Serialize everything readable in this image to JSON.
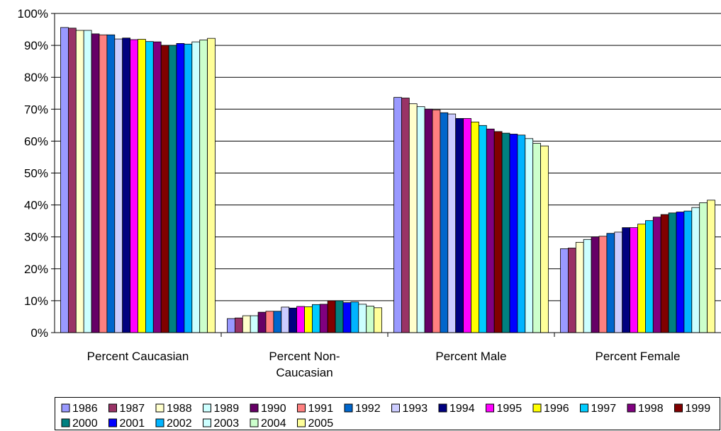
{
  "chart_data": {
    "type": "bar",
    "categories": [
      "Percent Caucasian",
      "Percent Non-Caucasian",
      "Percent Male",
      "Percent Female"
    ],
    "category_lines": [
      [
        "Percent Caucasian"
      ],
      [
        "Percent Non-",
        "Caucasian"
      ],
      [
        "Percent Male"
      ],
      [
        "Percent Female"
      ]
    ],
    "y_ticks": [
      "0%",
      "10%",
      "20%",
      "30%",
      "40%",
      "50%",
      "60%",
      "70%",
      "80%",
      "90%",
      "100%"
    ],
    "ylim": [
      0,
      100
    ],
    "grid": true,
    "legend_position": "bottom",
    "series": [
      {
        "name": "1986",
        "color": "#9999ff",
        "values": [
          95.6,
          4.4,
          73.7,
          26.3
        ]
      },
      {
        "name": "1987",
        "color": "#993366",
        "values": [
          95.4,
          4.6,
          73.5,
          26.5
        ]
      },
      {
        "name": "1988",
        "color": "#ffffcc",
        "values": [
          94.7,
          5.3,
          71.7,
          28.3
        ]
      },
      {
        "name": "1989",
        "color": "#ccffff",
        "values": [
          94.7,
          5.3,
          70.8,
          29.2
        ]
      },
      {
        "name": "1990",
        "color": "#660066",
        "values": [
          93.6,
          6.4,
          70.0,
          30.0
        ]
      },
      {
        "name": "1991",
        "color": "#ff8080",
        "values": [
          93.3,
          6.7,
          69.8,
          30.2
        ]
      },
      {
        "name": "1992",
        "color": "#0066cc",
        "values": [
          93.3,
          6.7,
          68.9,
          31.1
        ]
      },
      {
        "name": "1993",
        "color": "#ccccff",
        "values": [
          92.0,
          8.0,
          68.5,
          31.5
        ]
      },
      {
        "name": "1994",
        "color": "#000080",
        "values": [
          92.3,
          7.7,
          67.1,
          32.9
        ]
      },
      {
        "name": "1995",
        "color": "#ff00ff",
        "values": [
          91.8,
          8.2,
          67.1,
          32.9
        ]
      },
      {
        "name": "1996",
        "color": "#ffff00",
        "values": [
          91.9,
          8.1,
          66.0,
          34.0
        ]
      },
      {
        "name": "1997",
        "color": "#00ccff",
        "values": [
          91.2,
          8.8,
          64.9,
          35.1
        ]
      },
      {
        "name": "1998",
        "color": "#800080",
        "values": [
          91.1,
          8.9,
          63.8,
          36.2
        ]
      },
      {
        "name": "1999",
        "color": "#800000",
        "values": [
          90.0,
          10.0,
          63.0,
          37.0
        ]
      },
      {
        "name": "2000",
        "color": "#008080",
        "values": [
          90.0,
          10.0,
          62.5,
          37.5
        ]
      },
      {
        "name": "2001",
        "color": "#0000ff",
        "values": [
          90.6,
          9.4,
          62.2,
          37.8
        ]
      },
      {
        "name": "2002",
        "color": "#00b4ff",
        "values": [
          90.4,
          9.6,
          61.9,
          38.1
        ]
      },
      {
        "name": "2003",
        "color": "#ccffff",
        "values": [
          91.1,
          8.9,
          60.8,
          39.2
        ]
      },
      {
        "name": "2004",
        "color": "#ccffcc",
        "values": [
          91.7,
          8.3,
          59.3,
          40.7
        ]
      },
      {
        "name": "2005",
        "color": "#ffff99",
        "values": [
          92.2,
          7.8,
          58.5,
          41.5
        ]
      }
    ]
  }
}
